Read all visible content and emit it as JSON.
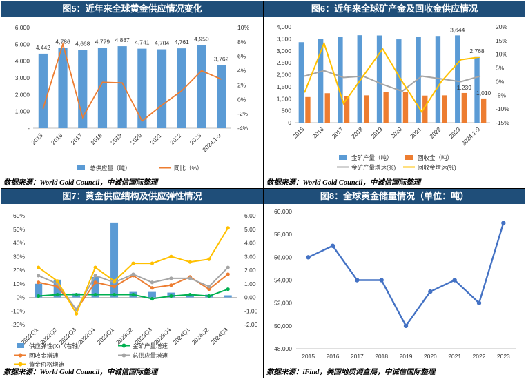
{
  "colors": {
    "header_bg": "#1F4E79",
    "bar_blue": "#5B9BD5",
    "orange": "#ED7D31",
    "gray": "#A5A5A5",
    "yellow": "#FFC000",
    "green": "#00B050",
    "line_blue": "#4472C4"
  },
  "panels": [
    {
      "title": "图5：近年来全球黄金供应情况变化",
      "source": "数据来源：World Gold Council，中诚信国际整理"
    },
    {
      "title": "图6：近年来全球矿产金及回收金供应情况",
      "source": "数据来源：World Gold Council，中诚信国际整理"
    },
    {
      "title": "图7：黄金供应结构及供应弹性情况",
      "source": "数据来源：World Gold Council，中诚信国际整理"
    },
    {
      "title": "图8：全球黄金储量情况（单位：吨）",
      "source": "数据来源：iFind，美国地质调查局，中诚信国际整理"
    }
  ],
  "chart_data": [
    {
      "type": "bar",
      "title": "图5：近年来全球黄金供应情况变化",
      "categories": [
        "2015",
        "2016",
        "2017",
        "2018",
        "2019",
        "2020",
        "2021",
        "2022",
        "2023",
        "2024.1-9"
      ],
      "series": [
        {
          "name": "总供应量（吨）",
          "type": "bar",
          "axis": "left",
          "values": [
            4442,
            4786,
            4668,
            4779,
            4887,
            4741,
            4704,
            4761,
            4950,
            3762
          ]
        },
        {
          "name": "同比（%）",
          "type": "line",
          "axis": "right",
          "values": [
            -1.3,
            7.7,
            -2.5,
            2.4,
            2.3,
            -3.0,
            -0.8,
            1.2,
            4.0,
            2.8
          ]
        }
      ],
      "data_labels": [
        "4,442",
        "4,786",
        "4,668",
        "4,779",
        "4,887",
        "4,741",
        "4,704",
        "4,761",
        "4,950",
        "3,762"
      ],
      "y_ticks": [
        "6,000",
        "5,000",
        "4,000",
        "3,000",
        "2,000",
        "1,000",
        "-"
      ],
      "y2_ticks": [
        "10%",
        "8%",
        "6%",
        "4%",
        "2%",
        "0%",
        "-2%",
        "-4%"
      ],
      "ylim": [
        0,
        6000
      ],
      "y2lim": [
        -4,
        10
      ]
    },
    {
      "type": "bar",
      "title": "图6：近年来全球矿产金及回收金供应情况",
      "categories": [
        "2015",
        "2016",
        "2017",
        "2018",
        "2019",
        "2020",
        "2021",
        "2022",
        "2023",
        "2024.1-9"
      ],
      "series": [
        {
          "name": "金矿产量（吨）",
          "type": "bar",
          "axis": "left",
          "values": [
            3360,
            3510,
            3570,
            3650,
            3640,
            3480,
            3580,
            3620,
            3644,
            2768
          ]
        },
        {
          "name": "回收金（吨）",
          "type": "bar",
          "axis": "left",
          "values": [
            1070,
            1230,
            1110,
            1140,
            1280,
            1290,
            1130,
            1140,
            1239,
            1010
          ]
        },
        {
          "name": "金矿产量增速(%)",
          "type": "line",
          "axis": "right",
          "values": [
            2.0,
            4.0,
            1.5,
            2.0,
            -1.0,
            -3.5,
            2.0,
            1.0,
            0.0,
            2.0
          ]
        },
        {
          "name": "回收金增速(%)",
          "type": "line",
          "axis": "right",
          "values": [
            -4.0,
            14.0,
            -8.0,
            2.0,
            12.0,
            0.0,
            -11.0,
            0.0,
            8.0,
            9.0
          ]
        }
      ],
      "data_labels": [
        {
          "series": "金矿产量（吨）",
          "category": "2023",
          "label": "3,644"
        },
        {
          "series": "金矿产量（吨）",
          "category": "2024.1-9",
          "label": "2,768"
        },
        {
          "series": "回收金（吨）",
          "category": "2023",
          "label": "1,239"
        },
        {
          "series": "回收金（吨）",
          "category": "2024.1-9",
          "label": "1,010"
        }
      ],
      "y_ticks": [
        "4,000",
        "3,500",
        "3,000",
        "2,500",
        "2,000",
        "1,500",
        "1,000",
        "500",
        "0"
      ],
      "y2_ticks": [
        "20%",
        "15%",
        "10%",
        "5%",
        "0%",
        "-5%",
        "-10%",
        "-15%"
      ],
      "ylim": [
        0,
        4000
      ],
      "y2lim": [
        -15,
        20
      ]
    },
    {
      "type": "bar",
      "title": "图7：黄金供应结构及供应弹性情况",
      "categories": [
        "2022Q1",
        "2022Q2",
        "2022Q3",
        "2022Q4",
        "2023Q1",
        "2023Q2",
        "2023Q3",
        "2023Q4",
        "2024Q1",
        "2024Q2",
        "2024Q3"
      ],
      "series": [
        {
          "name": "供应弹性(X)（右轴）",
          "type": "bar",
          "axis": "right",
          "values": [
            1.0,
            1.3,
            0.3,
            1.5,
            5.5,
            0.4,
            0.4,
            0.35,
            0.25,
            0.2,
            0.15
          ]
        },
        {
          "name": "金矿产量增速",
          "type": "line",
          "axis": "left",
          "values": [
            1,
            2,
            2,
            2,
            2,
            2,
            -1,
            1,
            2,
            1,
            6
          ]
        },
        {
          "name": "回收金增速",
          "type": "line",
          "axis": "left",
          "values": [
            11,
            8,
            -9,
            11,
            8,
            16,
            7,
            9,
            15,
            6,
            17
          ]
        },
        {
          "name": "总供应量增速",
          "type": "line",
          "axis": "left",
          "values": [
            16,
            10,
            -9,
            16,
            11,
            17,
            11,
            14,
            14,
            8,
            22
          ]
        },
        {
          "name": "黄金价格增速",
          "type": "line",
          "axis": "left",
          "values": [
            22,
            12,
            -12,
            22,
            12,
            25,
            25,
            30,
            26,
            28,
            51
          ]
        }
      ],
      "y_ticks": [
        "60%",
        "50%",
        "40%",
        "30%",
        "20%",
        "10%",
        "0%",
        "-10%",
        "-20%"
      ],
      "y2_ticks": [
        "6.00",
        "5.00",
        "4.00",
        "3.00",
        "2.00",
        "1.00",
        "0.00",
        "-1.00",
        "-2.00"
      ],
      "ylim": [
        -20,
        60
      ],
      "y2lim": [
        -2,
        6
      ]
    },
    {
      "type": "line",
      "title": "图8：全球黄金储量情况（单位：吨）",
      "categories": [
        "2015",
        "2016",
        "2017",
        "2018",
        "2019",
        "2020",
        "2021",
        "2022",
        "2023"
      ],
      "series": [
        {
          "name": "全球黄金储量",
          "values": [
            56000,
            57000,
            54000,
            54000,
            50000,
            53000,
            54000,
            52000,
            59000
          ]
        }
      ],
      "y_ticks": [
        "60,000",
        "58,000",
        "56,000",
        "54,000",
        "52,000",
        "50,000",
        "48,000"
      ],
      "ylim": [
        48000,
        60000
      ]
    }
  ]
}
